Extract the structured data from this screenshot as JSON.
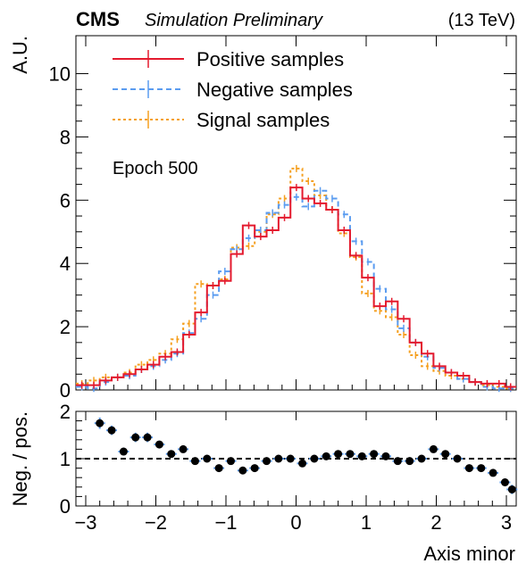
{
  "header": {
    "experiment": "CMS",
    "status": "Simulation Preliminary",
    "energy": "(13 TeV)"
  },
  "annotation": "Epoch 500",
  "chart_data": [
    {
      "type": "line",
      "subtype": "step-histogram",
      "ylabel": "A.U.",
      "xlim": [
        -3.14,
        3.14
      ],
      "ylim": [
        0,
        11.2
      ],
      "yticks": [
        0,
        2,
        4,
        6,
        8,
        10
      ],
      "legend_position": "top-left",
      "bin_edges": [
        -3.14,
        -2.97,
        -2.8,
        -2.63,
        -2.46,
        -2.29,
        -2.12,
        -1.95,
        -1.78,
        -1.61,
        -1.44,
        -1.27,
        -1.1,
        -0.93,
        -0.76,
        -0.59,
        -0.42,
        -0.25,
        -0.08,
        0.09,
        0.26,
        0.43,
        0.6,
        0.77,
        0.94,
        1.11,
        1.28,
        1.45,
        1.62,
        1.79,
        1.96,
        2.13,
        2.3,
        2.47,
        2.64,
        2.81,
        2.98,
        3.14
      ],
      "series": [
        {
          "name": "Positive samples",
          "color": "#e41a2e",
          "style": "solid",
          "values": [
            0.15,
            0.15,
            0.3,
            0.4,
            0.5,
            0.65,
            0.8,
            1.05,
            1.2,
            1.75,
            2.45,
            3.3,
            3.45,
            4.3,
            5.2,
            4.85,
            5.05,
            5.45,
            6.4,
            6.05,
            5.9,
            5.7,
            5.05,
            4.25,
            3.55,
            2.65,
            2.8,
            2.25,
            1.5,
            1.15,
            0.75,
            0.55,
            0.45,
            0.25,
            0.2,
            0.2,
            0.1
          ]
        },
        {
          "name": "Negative samples",
          "color": "#5b9cf0",
          "style": "dashed",
          "values": [
            0.1,
            0.05,
            0.25,
            0.4,
            0.45,
            0.65,
            0.75,
            0.95,
            1.15,
            1.8,
            2.25,
            3.0,
            3.75,
            4.45,
            4.8,
            5.05,
            5.6,
            5.85,
            6.1,
            5.8,
            6.3,
            6.05,
            5.55,
            4.7,
            4.05,
            3.2,
            2.55,
            1.95,
            1.5,
            1.05,
            0.7,
            0.55,
            0.35,
            0.25,
            0.1,
            0.05,
            0.05
          ]
        },
        {
          "name": "Signal samples",
          "color": "#f5a021",
          "style": "dotted",
          "values": [
            0.2,
            0.3,
            0.4,
            0.4,
            0.55,
            0.8,
            0.95,
            1.15,
            1.6,
            2.1,
            3.35,
            3.3,
            3.5,
            4.5,
            4.55,
            5.0,
            5.55,
            6.05,
            7.0,
            6.6,
            6.15,
            5.7,
            4.95,
            4.2,
            3.05,
            2.5,
            2.3,
            1.75,
            1.1,
            0.75,
            0.6,
            0.45,
            0.35,
            0.25,
            0.15,
            0.1,
            0.05
          ]
        }
      ]
    },
    {
      "type": "scatter",
      "ylabel": "Neg. / pos.",
      "xlabel": "Axis minor",
      "xlim": [
        -3.14,
        3.14
      ],
      "ylim": [
        0,
        2
      ],
      "yticks": [
        0,
        1,
        2
      ],
      "xticks": [
        -3,
        -2,
        -1,
        0,
        1,
        2,
        3
      ],
      "reference_line": 1,
      "marker_color": "#000000",
      "error_color": "#5b9cf0",
      "x": [
        -2.8,
        -2.63,
        -2.46,
        -2.29,
        -2.12,
        -1.95,
        -1.78,
        -1.61,
        -1.44,
        -1.27,
        -1.1,
        -0.93,
        -0.76,
        -0.59,
        -0.42,
        -0.25,
        -0.08,
        0.09,
        0.26,
        0.43,
        0.6,
        0.77,
        0.94,
        1.11,
        1.28,
        1.45,
        1.62,
        1.79,
        1.96,
        2.13,
        2.3,
        2.47,
        2.64,
        2.81,
        2.98,
        3.08
      ],
      "values": [
        1.75,
        1.6,
        1.15,
        1.45,
        1.45,
        1.3,
        1.1,
        1.2,
        0.95,
        1.0,
        0.8,
        0.95,
        0.75,
        0.8,
        0.95,
        1.0,
        1.0,
        0.9,
        1.0,
        1.05,
        1.1,
        1.1,
        1.05,
        1.1,
        1.05,
        0.95,
        0.95,
        1.0,
        1.2,
        1.1,
        1.0,
        0.8,
        0.8,
        0.7,
        0.5,
        0.35
      ],
      "errors": [
        0.12,
        0.1,
        0.08,
        0.1,
        0.1,
        0.08,
        0.06,
        0.06,
        0.05,
        0.05,
        0.04,
        0.04,
        0.04,
        0.04,
        0.04,
        0.04,
        0.04,
        0.03,
        0.03,
        0.04,
        0.04,
        0.04,
        0.04,
        0.04,
        0.04,
        0.04,
        0.04,
        0.05,
        0.06,
        0.06,
        0.06,
        0.07,
        0.07,
        0.07,
        0.08,
        0.1
      ]
    }
  ]
}
